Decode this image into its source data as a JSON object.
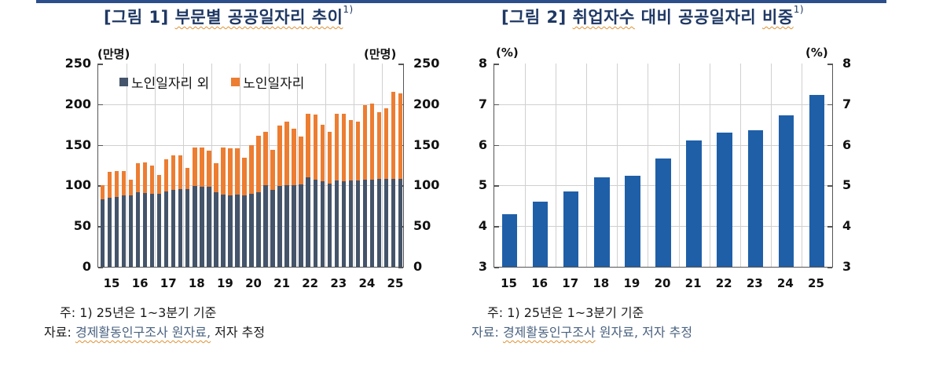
{
  "colors": {
    "non_senior": "#44546a",
    "senior": "#ed7d31",
    "share": "#1f5fa8",
    "title": "#1f3864",
    "topline": "#2c4f8c"
  },
  "fig1": {
    "title_prefix": "[그림 1]",
    "title_text": "부문별 공공일자리 추이",
    "title_sup": "1)",
    "unit_left": "(만명)",
    "unit_right": "(만명)",
    "yticks": [
      "250",
      "200",
      "150",
      "100",
      "50",
      "0"
    ],
    "xticks": [
      "15",
      "16",
      "17",
      "18",
      "19",
      "20",
      "21",
      "22",
      "23",
      "24",
      "25"
    ],
    "legend": [
      {
        "label": "노인일자리 외",
        "color": "#44546a"
      },
      {
        "label": "노인일자리",
        "color": "#ed7d31"
      }
    ],
    "note": "주: 1) 25년은 1~3분기 기준",
    "source_label": "자료:",
    "source_text": "경제활동인구조사 원자료,",
    "source_extra": "저자 추정"
  },
  "fig2": {
    "title_prefix": "[그림 2]",
    "title_text_a": "취업자수",
    "title_text_b": "대비 공공일자리",
    "title_text_c": "비중",
    "title_sup": "1)",
    "unit_left": "(%)",
    "unit_right": "(%)",
    "yticks": [
      "8",
      "7",
      "6",
      "5",
      "4",
      "3"
    ],
    "xticks": [
      "15",
      "16",
      "17",
      "18",
      "19",
      "20",
      "21",
      "22",
      "23",
      "24",
      "25"
    ],
    "note": "주: 1) 25년은 1~3분기 기준",
    "source_label": "자료:",
    "source_text": "경제활동인구조사",
    "source_extra": "원자료, 저자 추정"
  },
  "chart_data": [
    {
      "type": "bar",
      "stacked": true,
      "title": "[그림 1] 부문별 공공일자리 추이1)",
      "xlabel": "",
      "ylabel": "(만명)",
      "ylim": [
        0,
        250
      ],
      "grid": true,
      "legend_position": "top-left inside",
      "x": [
        "15Q1",
        "15Q2",
        "15Q3",
        "15Q4",
        "16Q1",
        "16Q2",
        "16Q3",
        "16Q4",
        "17Q1",
        "17Q2",
        "17Q3",
        "17Q4",
        "18Q1",
        "18Q2",
        "18Q3",
        "18Q4",
        "19Q1",
        "19Q2",
        "19Q3",
        "19Q4",
        "20Q1",
        "20Q2",
        "20Q3",
        "20Q4",
        "21Q1",
        "21Q2",
        "21Q3",
        "21Q4",
        "22Q1",
        "22Q2",
        "22Q3",
        "22Q4",
        "23Q1",
        "23Q2",
        "23Q3",
        "23Q4",
        "24Q1",
        "24Q2",
        "24Q3",
        "24Q4",
        "25Q1",
        "25Q2",
        "25Q3"
      ],
      "x_tick_labels": [
        "15",
        "16",
        "17",
        "18",
        "19",
        "20",
        "21",
        "22",
        "23",
        "24",
        "25"
      ],
      "series": [
        {
          "name": "노인일자리 외",
          "values": [
            83,
            85,
            86,
            88,
            88,
            92,
            91,
            90,
            90,
            93,
            95,
            96,
            96,
            99,
            98,
            98,
            92,
            89,
            88,
            89,
            88,
            90,
            92,
            100,
            95,
            99,
            100,
            100,
            101,
            110,
            107,
            105,
            102,
            106,
            105,
            106,
            106,
            107,
            107,
            108,
            108,
            108,
            108
          ]
        },
        {
          "name": "노인일자리",
          "values": [
            17,
            32,
            32,
            30,
            19,
            35,
            37,
            35,
            23,
            39,
            42,
            41,
            26,
            48,
            49,
            45,
            35,
            58,
            58,
            57,
            46,
            60,
            69,
            66,
            49,
            75,
            79,
            70,
            59,
            78,
            80,
            70,
            64,
            82,
            83,
            75,
            73,
            92,
            94,
            82,
            87,
            107,
            105
          ]
        }
      ],
      "totals": [
        100,
        117,
        118,
        118,
        107,
        127,
        128,
        125,
        113,
        132,
        137,
        137,
        122,
        147,
        147,
        143,
        127,
        147,
        146,
        146,
        134,
        150,
        161,
        166,
        144,
        174,
        179,
        170,
        160,
        188,
        187,
        175,
        166,
        188,
        188,
        181,
        179,
        199,
        201,
        190,
        195,
        215,
        213
      ]
    },
    {
      "type": "bar",
      "title": "[그림 2] 취업자수 대비 공공일자리 비중1)",
      "xlabel": "",
      "ylabel": "(%)",
      "ylim": [
        3,
        8
      ],
      "grid": true,
      "categories": [
        "15",
        "16",
        "17",
        "18",
        "19",
        "20",
        "21",
        "22",
        "23",
        "24",
        "25"
      ],
      "values": [
        4.3,
        4.6,
        4.85,
        5.2,
        5.24,
        5.67,
        6.11,
        6.31,
        6.36,
        6.73,
        7.22
      ]
    }
  ]
}
